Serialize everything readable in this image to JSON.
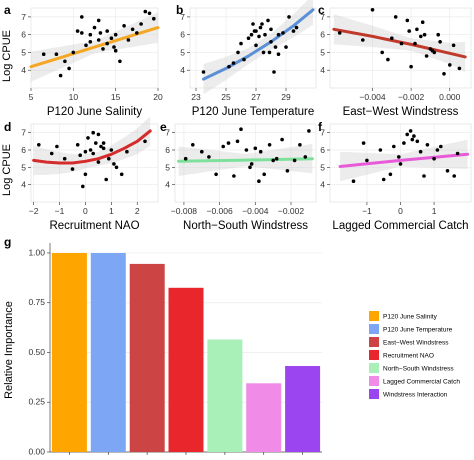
{
  "chart_data": [
    {
      "type": "scatter",
      "panel": "a",
      "xlabel": "P120 June Salinity",
      "ylabel": "Log CPUE",
      "xlim": [
        5,
        20
      ],
      "ylim": [
        3,
        7.5
      ],
      "xticks": [
        "5",
        "10",
        "15",
        "20"
      ],
      "xtick_values": [
        5,
        10,
        15,
        20
      ],
      "yticks": [
        "4",
        "5",
        "6",
        "7"
      ],
      "ytick_values": [
        4,
        5,
        6,
        7
      ],
      "line_color": "#F5A623",
      "fit": {
        "x": [
          5,
          8.75,
          12.5,
          16.25,
          20
        ],
        "y": [
          4.2,
          4.75,
          5.3,
          5.85,
          6.4
        ]
      },
      "points": {
        "x": [
          6.5,
          8,
          8.5,
          9.5,
          10,
          10.5,
          11,
          11.5,
          12,
          12,
          12.5,
          13,
          13,
          13.5,
          14,
          14,
          14.5,
          15,
          15,
          15.5,
          16,
          16.5,
          17,
          17.5,
          18,
          18.5,
          19,
          19.5,
          9,
          11,
          13.2,
          14.8
        ],
        "y": [
          4.9,
          4.9,
          3.7,
          4.1,
          5.0,
          6.2,
          6.1,
          5.4,
          6.0,
          5.6,
          6.4,
          5.7,
          6.8,
          5.2,
          6.2,
          5.5,
          5.8,
          6.0,
          5.1,
          4.5,
          6.5,
          5.7,
          6.3,
          6.1,
          6.6,
          7.3,
          7.2,
          6.9,
          4.5,
          7.0,
          6.1,
          5.3
        ]
      }
    },
    {
      "type": "scatter",
      "panel": "b",
      "xlabel": "P120 June Temperature",
      "ylabel": "",
      "xlim": [
        22.6,
        31
      ],
      "ylim": [
        3,
        7.5
      ],
      "xticks": [
        "23",
        "25",
        "27",
        "29"
      ],
      "xtick_values": [
        23,
        25,
        27,
        29
      ],
      "yticks": [
        "4",
        "5",
        "6",
        "7"
      ],
      "ytick_values": [
        4,
        5,
        6,
        7
      ],
      "line_color": "#5B8FD6",
      "fit": {
        "x": [
          23.5,
          25,
          26.5,
          28,
          29.5,
          30.8
        ],
        "y": [
          3.5,
          4.1,
          4.8,
          5.6,
          6.5,
          7.4
        ]
      },
      "points": {
        "x": [
          23.5,
          25.2,
          25.5,
          25.8,
          26,
          26.2,
          26.5,
          26.7,
          26.8,
          27,
          27,
          27.2,
          27.3,
          27.5,
          27.6,
          27.8,
          28,
          28,
          28.2,
          28.5,
          28.5,
          28.8,
          29,
          29.2,
          29.5,
          27.4,
          26.9,
          28.3,
          27.9,
          29.7
        ],
        "y": [
          3.9,
          4.2,
          4.4,
          5.0,
          5.5,
          4.6,
          5.8,
          6.0,
          6.6,
          5.4,
          6.2,
          5.9,
          6.4,
          5.0,
          6.0,
          6.8,
          5.6,
          6.3,
          3.9,
          4.9,
          6.0,
          6.1,
          5.3,
          7.0,
          6.2,
          6.6,
          6.2,
          5.3,
          5.0,
          6.4
        ]
      }
    },
    {
      "type": "scatter",
      "panel": "c",
      "xlabel": "East−West Windstress",
      "ylabel": "",
      "xlim": [
        -0.0062,
        0.0011
      ],
      "ylim": [
        3,
        7.5
      ],
      "xticks": [
        "−0.004",
        "−0.002",
        "0.000"
      ],
      "xtick_values": [
        -0.004,
        -0.002,
        0.0
      ],
      "yticks": [
        "4",
        "5",
        "6",
        "7"
      ],
      "ytick_values": [
        4,
        5,
        6,
        7
      ],
      "line_color": "#C0392B",
      "fit": {
        "x": [
          -0.006,
          -0.004,
          -0.002,
          0.0,
          0.0008
        ],
        "y": [
          6.3,
          5.9,
          5.45,
          4.95,
          4.75
        ]
      },
      "points": {
        "x": [
          -0.0057,
          -0.0045,
          -0.004,
          -0.0035,
          -0.003,
          -0.0028,
          -0.0025,
          -0.0022,
          -0.002,
          -0.0018,
          -0.0017,
          -0.0015,
          -0.0013,
          -0.0012,
          -0.001,
          -0.0008,
          -0.0006,
          -0.0005,
          -0.0003,
          0.0,
          0.0002,
          0.0005,
          -0.0021,
          -0.0014,
          -0.0009,
          -0.0032
        ],
        "y": [
          6.1,
          5.7,
          7.4,
          5.0,
          5.8,
          7.0,
          5.5,
          6.8,
          4.2,
          5.5,
          6.3,
          5.9,
          6.0,
          4.8,
          5.2,
          5.0,
          6.0,
          5.6,
          3.8,
          4.3,
          5.4,
          4.1,
          6.2,
          6.7,
          5.1,
          4.6
        ]
      }
    },
    {
      "type": "scatter",
      "panel": "d",
      "xlabel": "Recruitment NAO",
      "ylabel": "Log CPUE",
      "xlim": [
        -2.1,
        2.8
      ],
      "ylim": [
        3,
        7.5
      ],
      "xticks": [
        "−2",
        "−1",
        "0",
        "1",
        "2"
      ],
      "xtick_values": [
        -2,
        -1,
        0,
        1,
        2
      ],
      "yticks": [
        "4",
        "5",
        "6",
        "7"
      ],
      "ytick_values": [
        4,
        5,
        6,
        7
      ],
      "line_color": "#D42B2B",
      "fit": {
        "x": [
          -2,
          -1.5,
          -1,
          -0.5,
          0,
          0.5,
          1,
          1.5,
          2,
          2.5
        ],
        "y": [
          5.4,
          5.3,
          5.25,
          5.25,
          5.35,
          5.5,
          5.75,
          6.1,
          6.5,
          7.1
        ]
      },
      "points": {
        "x": [
          -1.8,
          -1.3,
          -1.1,
          -0.8,
          -0.5,
          -0.3,
          -0.2,
          0.0,
          0.1,
          0.2,
          0.3,
          0.4,
          0.5,
          0.5,
          0.6,
          0.7,
          0.8,
          0.9,
          1.0,
          1.2,
          1.4,
          1.6,
          2.3,
          -0.1,
          0.3,
          0.7,
          1.1,
          0.0
        ],
        "y": [
          6.3,
          5.8,
          6.2,
          5.5,
          4.9,
          6.3,
          5.7,
          4.6,
          6.7,
          6.0,
          5.8,
          6.4,
          6.9,
          5.3,
          6.2,
          6.1,
          4.3,
          5.5,
          6.0,
          5.0,
          4.6,
          5.9,
          6.5,
          3.9,
          7.0,
          6.4,
          5.2,
          5.9
        ]
      }
    },
    {
      "type": "scatter",
      "panel": "e",
      "xlabel": "North−South Windstress",
      "ylabel": "",
      "xlim": [
        -0.0085,
        -0.0006
      ],
      "ylim": [
        3,
        7.5
      ],
      "xticks": [
        "−0.008",
        "−0.006",
        "−0.004",
        "−0.002"
      ],
      "xtick_values": [
        -0.008,
        -0.006,
        -0.004,
        -0.002
      ],
      "yticks": [
        "4",
        "5",
        "6",
        "7"
      ],
      "ytick_values": [
        4,
        5,
        6,
        7
      ],
      "line_color": "#7FE09B",
      "fit": {
        "x": [
          -0.0083,
          -0.0045,
          -0.0008
        ],
        "y": [
          5.35,
          5.42,
          5.5
        ]
      },
      "points": {
        "x": [
          -0.0079,
          -0.0075,
          -0.007,
          -0.0066,
          -0.0062,
          -0.0058,
          -0.0055,
          -0.0052,
          -0.005,
          -0.0048,
          -0.0045,
          -0.0042,
          -0.004,
          -0.0038,
          -0.0035,
          -0.0032,
          -0.003,
          -0.0028,
          -0.0025,
          -0.0022,
          -0.0018,
          -0.0015,
          -0.0012,
          -0.001,
          -0.0043,
          -0.0037
        ],
        "y": [
          5.5,
          6.3,
          5.9,
          5.6,
          4.6,
          6.2,
          6.4,
          4.5,
          6.5,
          7.2,
          6.0,
          5.2,
          6.1,
          4.2,
          4.6,
          6.3,
          5.4,
          5.5,
          6.6,
          4.8,
          5.4,
          6.3,
          5.6,
          7.1,
          5.0,
          5.9
        ]
      }
    },
    {
      "type": "scatter",
      "panel": "f",
      "xlabel": "Lagged Commercial Catch",
      "ylabel": "",
      "xlim": [
        -2.1,
        2.1
      ],
      "ylim": [
        3,
        7.5
      ],
      "xticks": [
        "−1",
        "0",
        "1"
      ],
      "xtick_values": [
        -1,
        0,
        1
      ],
      "yticks": [
        "4",
        "5",
        "6",
        "7"
      ],
      "ytick_values": [
        4,
        5,
        6,
        7
      ],
      "line_color": "#E85BD8",
      "fit": {
        "x": [
          -1.8,
          0,
          2.0
        ],
        "y": [
          5.05,
          5.4,
          5.75
        ]
      },
      "points": {
        "x": [
          -1.4,
          -1.1,
          -1.0,
          -0.6,
          -0.5,
          -0.3,
          -0.2,
          0.0,
          0.1,
          0.2,
          0.3,
          0.4,
          0.5,
          0.6,
          0.7,
          0.8,
          1.0,
          1.1,
          1.2,
          1.4,
          1.6,
          1.7,
          0.35,
          -0.05
        ],
        "y": [
          4.2,
          6.4,
          5.4,
          6.0,
          4.3,
          4.6,
          6.2,
          5.2,
          6.4,
          6.9,
          7.1,
          6.8,
          6.5,
          5.9,
          4.5,
          6.3,
          5.5,
          6.0,
          6.2,
          4.8,
          4.5,
          5.8,
          6.6,
          5.6
        ]
      }
    },
    {
      "type": "bar",
      "panel": "g",
      "ylabel": "Relative Importance",
      "ylim": [
        0,
        1.05
      ],
      "yticks": [
        "0.00",
        "0.25",
        "0.50",
        "0.75",
        "1.00"
      ],
      "ytick_values": [
        0,
        0.25,
        0.5,
        0.75,
        1.0
      ],
      "categories": [
        "P120 June Salinity",
        "P120 June Temperature",
        "East−West Windstress",
        "Recruitment NAO",
        "North−South Windstress",
        "Lagged Commercial Catch",
        "Windstress Interaction"
      ],
      "values": [
        1.0,
        1.0,
        0.945,
        0.825,
        0.565,
        0.345,
        0.432
      ],
      "colors": [
        "#FFA500",
        "#7DA7F5",
        "#CC4444",
        "#E8262B",
        "#A8F0B8",
        "#F08BE8",
        "#9B45F0"
      ],
      "legend_position": "right"
    }
  ]
}
